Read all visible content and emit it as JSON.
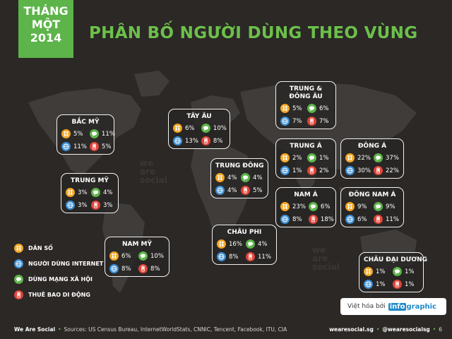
{
  "badge": {
    "line1": "THÁNG",
    "line2": "MỘT",
    "line3": "2014"
  },
  "headline": "PHÂN BỐ NGƯỜI DÙNG THEO VÙNG",
  "regions": {
    "bac_my": {
      "name": "BẮC MỸ",
      "pop": "5%",
      "soc": "11%",
      "net": "11%",
      "mob": "5%"
    },
    "trung_my": {
      "name": "TRUNG MỸ",
      "pop": "3%",
      "soc": "4%",
      "net": "3%",
      "mob": "3%"
    },
    "nam_my": {
      "name": "NAM MỸ",
      "pop": "6%",
      "soc": "10%",
      "net": "8%",
      "mob": "8%"
    },
    "tay_au": {
      "name": "TÂY ÂU",
      "pop": "6%",
      "soc": "10%",
      "net": "13%",
      "mob": "8%"
    },
    "trung_dong": {
      "name": "TRUNG ĐÔNG",
      "pop": "4%",
      "soc": "4%",
      "net": "4%",
      "mob": "5%"
    },
    "chau_phi": {
      "name": "CHÂU PHI",
      "pop": "16%",
      "soc": "4%",
      "net": "8%",
      "mob": "11%"
    },
    "trung_dong_au": {
      "name1": "TRUNG &",
      "name2": "ĐÔNG ÂU",
      "pop": "5%",
      "soc": "6%",
      "net": "7%",
      "mob": "7%"
    },
    "trung_a": {
      "name": "TRUNG Á",
      "pop": "2%",
      "soc": "1%",
      "net": "1%",
      "mob": "2%"
    },
    "nam_a": {
      "name": "NAM Á",
      "pop": "23%",
      "soc": "6%",
      "net": "8%",
      "mob": "18%"
    },
    "dong_a": {
      "name": "ĐÔNG Á",
      "pop": "22%",
      "soc": "37%",
      "net": "30%",
      "mob": "22%"
    },
    "dong_nam_a": {
      "name": "ĐÔNG NAM Á",
      "pop": "9%",
      "soc": "9%",
      "net": "6%",
      "mob": "11%"
    },
    "chau_dai_duong": {
      "name": "CHÂU ĐẠI DƯƠNG",
      "pop": "1%",
      "soc": "1%",
      "net": "1%",
      "mob": "1%"
    }
  },
  "legend": {
    "pop": "DÂN SỐ",
    "net": "NGƯỜI DÙNG INTERNET",
    "soc": "DÙNG MẠNG XÃ HỘI",
    "mob": "THUÊ BAO DI ĐỘNG"
  },
  "credit": {
    "text": "Việt hóa bởi",
    "logo_a": "info",
    "logo_b": "graphic"
  },
  "watermark": {
    "l1": "we",
    "l2": "are",
    "l3": "social"
  },
  "footer": {
    "brand": "We Are Social",
    "sources": "Sources: US Census Bureau, InternetWorldStats, CNNIC, Tencent, Facebook, ITU, CIA",
    "site": "wearesocial.sg",
    "handle": "@wearesocialsg",
    "page": "6"
  },
  "colors": {
    "accent": "#6cc04a",
    "population": "#f5a623",
    "internet": "#3a8fd6",
    "social": "#5db44a",
    "mobile": "#e0443a"
  },
  "icons": {
    "population": "people-icon",
    "internet": "globe-icon",
    "social": "speech-bubble-icon",
    "mobile": "mobile-phone-icon"
  }
}
